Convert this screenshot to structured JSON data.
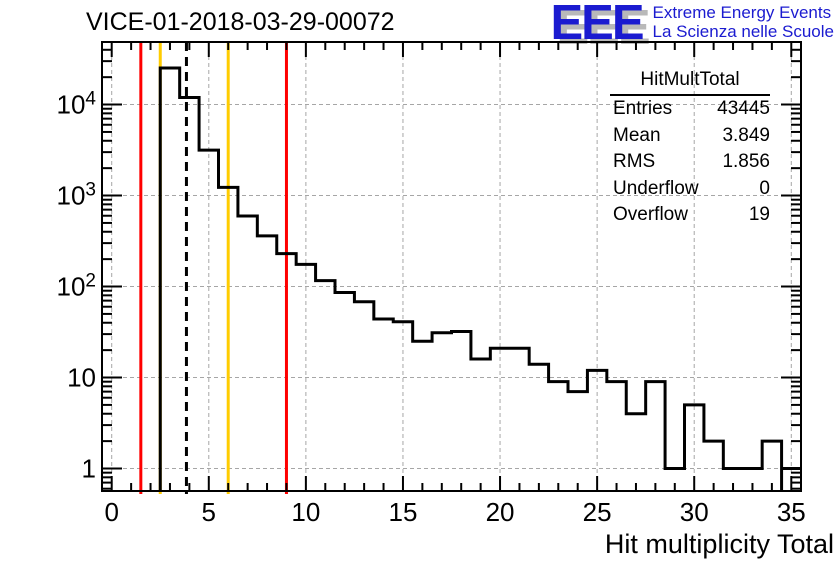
{
  "header": {
    "title": "VICE-01-2018-03-29-00072"
  },
  "logo": {
    "acronym": "EEE",
    "line1": "Extreme Energy Events",
    "line2": "La Scienza nelle Scuole",
    "color": "#1b1bd0"
  },
  "stats": {
    "title": "HitMultTotal",
    "rows": [
      {
        "label": "Entries",
        "value": "43445"
      },
      {
        "label": "Mean",
        "value": "3.849"
      },
      {
        "label": "RMS",
        "value": "1.856"
      },
      {
        "label": "Underflow",
        "value": "0"
      },
      {
        "label": "Overflow",
        "value": "19"
      }
    ]
  },
  "chart_data": {
    "type": "bar",
    "style": "step-histogram",
    "title": "VICE-01-2018-03-29-00072",
    "xlabel": "Hit multiplicity Total",
    "ylabel": "",
    "bin_width": 1,
    "bin_centers": [
      0,
      1,
      2,
      3,
      4,
      5,
      6,
      7,
      8,
      9,
      10,
      11,
      12,
      13,
      14,
      15,
      16,
      17,
      18,
      19,
      20,
      21,
      22,
      23,
      24,
      25,
      26,
      27,
      28,
      29,
      30,
      31,
      32,
      33,
      34,
      35
    ],
    "values": [
      0,
      0,
      0,
      25200,
      11950,
      3160,
      1230,
      595,
      360,
      230,
      175,
      116,
      86,
      68,
      44,
      41,
      25,
      31,
      32,
      16,
      21,
      21,
      14,
      9,
      7,
      12,
      9,
      4,
      9,
      1,
      5,
      2,
      1,
      1,
      2,
      1
    ],
    "underflow": 0,
    "overflow": 19,
    "xlim": [
      -0.5,
      35.5
    ],
    "ylim": [
      0.566,
      48700
    ],
    "yscale": "log",
    "grid": true,
    "grid_color": "#a6a6a6",
    "line_color": "#000000",
    "x_major_ticks": [
      0,
      5,
      10,
      15,
      20,
      25,
      30,
      35
    ],
    "x_tick_labels": [
      "0",
      "5",
      "10",
      "15",
      "20",
      "25",
      "30",
      "35"
    ],
    "y_major_ticks": [
      {
        "value": 1,
        "base": "1",
        "exp": ""
      },
      {
        "value": 10,
        "base": "10",
        "exp": ""
      },
      {
        "value": 100,
        "base": "10",
        "exp": "2"
      },
      {
        "value": 1000,
        "base": "10",
        "exp": "3"
      },
      {
        "value": 10000,
        "base": "10",
        "exp": "4"
      }
    ],
    "vlines": [
      {
        "x": 1.5,
        "color": "#ff0000",
        "style": "solid",
        "name": "red-threshold-low"
      },
      {
        "x": 2.5,
        "color": "#ffcc00",
        "style": "solid",
        "name": "yellow-threshold-low"
      },
      {
        "x": 3.849,
        "color": "#000000",
        "style": "dashed",
        "name": "mean-line"
      },
      {
        "x": 6,
        "color": "#ffcc00",
        "style": "solid",
        "name": "yellow-threshold-high"
      },
      {
        "x": 9,
        "color": "#ff0000",
        "style": "solid",
        "name": "red-threshold-high"
      }
    ]
  }
}
